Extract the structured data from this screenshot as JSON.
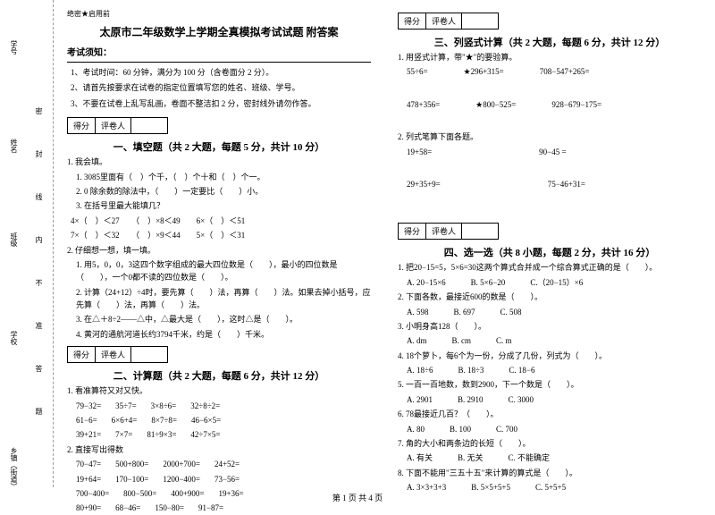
{
  "secret": "绝密★启用前",
  "title": "太原市二年级数学上学期全真模拟考试试题 附答案",
  "notice_header": "考试须知：",
  "notices": [
    "1、考试时间：60 分钟，满分为 100 分（含卷面分 2 分）。",
    "2、请首先按要求在试卷的指定位置填写您的姓名、班级、学号。",
    "3、不要在试卷上乱写乱画，卷面不整洁扣 2 分，密封线外请勿作答。"
  ],
  "score_label1": "得分",
  "score_label2": "评卷人",
  "s1": {
    "title": "一、填空题（共 2 大题，每题 5 分，共计 10 分）"
  },
  "q1": "1. 我会填。",
  "q1a": "1. 3085里面有（　）个千，（　）个十和（　）个一。",
  "q1b": "2. 0 除余数的除法中，（　　）一定要比（　　）小。",
  "q1c": "3. 在括号里最大能填几？",
  "q1c1": "4×（　）＜27　　（　）×8＜49　　6×（　）＜51",
  "q1c2": "7×（　）＜32　　（　）×9＜44　　5×（　）＜31",
  "q2": "2. 仔细想一想，填一填。",
  "q2a": "1. 用5，0，0，3这四个数字组成的最大四位数是（　　），最小的四位数是（　　），一个0都不读的四位数是（　　）。",
  "q2b": "2. 计算（24+12）÷4时，要先算（　　）法，再算（　　）法。如果去掉小括号，应先算（　　）法，再算（　　）法。",
  "q2c": "3. 在△＋8÷2——△中，△最大是（　　），这时△是（　　）。",
  "q2d": "4. 黄河的通航河道长约3794千米，约是（　　）千米。",
  "s2": {
    "title": "二、计算题（共 2 大题，每题 6 分，共计 12 分）"
  },
  "q3": "1. 看准算符又对又快。",
  "q3rows": [
    [
      "79−32=",
      "35÷7=",
      "3×8÷6=",
      "32÷8÷2="
    ],
    [
      "61−6=",
      "6×6+4=",
      "8×7÷8=",
      "46−6×5="
    ],
    [
      "39+21=",
      "7×7=",
      "81÷9×3=",
      "42÷7×5="
    ]
  ],
  "q4": "2. 直接写出得数",
  "q4rows": [
    [
      "70−47=",
      "500+800=",
      "2000+700=",
      "24+52="
    ],
    [
      "19+64=",
      "170−100=",
      "1200−400=",
      "73−56="
    ],
    [
      "700−400=",
      "800−500=",
      "400+900=",
      "19+36="
    ],
    [
      "80+90=",
      "68−46=",
      "150−80=",
      "91−87="
    ]
  ],
  "s3": {
    "title": "三、列竖式计算（共 2 大题，每题 6 分，共计 12 分）"
  },
  "q5": "1. 用竖式计算，带\"★\"的要验算。",
  "q5rows": [
    [
      "55÷6=",
      "★296+315=",
      "708−547+265="
    ],
    [
      "478+356=",
      "★800−525=",
      "928−679−175="
    ]
  ],
  "q6": "2. 列式笔算下面各题。",
  "q6rows": [
    [
      "19+58=",
      "",
      "90−45 ="
    ],
    [
      "29+35+9=",
      "",
      "75−46+31="
    ]
  ],
  "s4": {
    "title": "四、选一选（共 8 小题，每题 2 分，共计 16 分）"
  },
  "mc": [
    {
      "q": "1. 把20−15=5，5×6=30这两个算式合并成一个综合算式正确的是（　　）。",
      "opts": [
        "A. 20−15×6",
        "B. 5×6−20",
        "C.（20−15）×6"
      ]
    },
    {
      "q": "2. 下面各数，最接近600的数是（　　）。",
      "opts": [
        "A. 598",
        "B. 697",
        "C. 508"
      ]
    },
    {
      "q": "3. 小明身高128（　　）。",
      "opts": [
        "A. dm",
        "B. cm",
        "C. m"
      ]
    },
    {
      "q": "4. 18个萝卜，每6个为一份，分成了几份，列式为（　　）。",
      "opts": [
        "A. 18÷6",
        "B. 18÷3",
        "C. 18−6"
      ]
    },
    {
      "q": "5. 一百一百地数，数到2900，下一个数是（　　）。",
      "opts": [
        "A. 2901",
        "B. 2910",
        "C. 3000"
      ]
    },
    {
      "q": "6. 78最接近几百？（　　）。",
      "opts": [
        "A. 80",
        "B. 100",
        "C. 700"
      ]
    },
    {
      "q": "7. 角的大小和两条边的长短（　　）。",
      "opts": [
        "A. 有关",
        "B. 无关",
        "C. 不能确定"
      ]
    },
    {
      "q": "8. 下面不能用\"三五十五\"来计算的算式是（　　）。",
      "opts": [
        "A. 3×3+3+3",
        "B. 5×5+5+5",
        "C. 5+5+5"
      ]
    }
  ],
  "footer": "第 1 页 共 4 页",
  "margin": {
    "a": "乡镇（街道）",
    "b": "学校",
    "c": "班级",
    "d": "姓名",
    "e": "学号",
    "cut": "密　　封　　线　　内　　不　　准　　答　　题"
  }
}
